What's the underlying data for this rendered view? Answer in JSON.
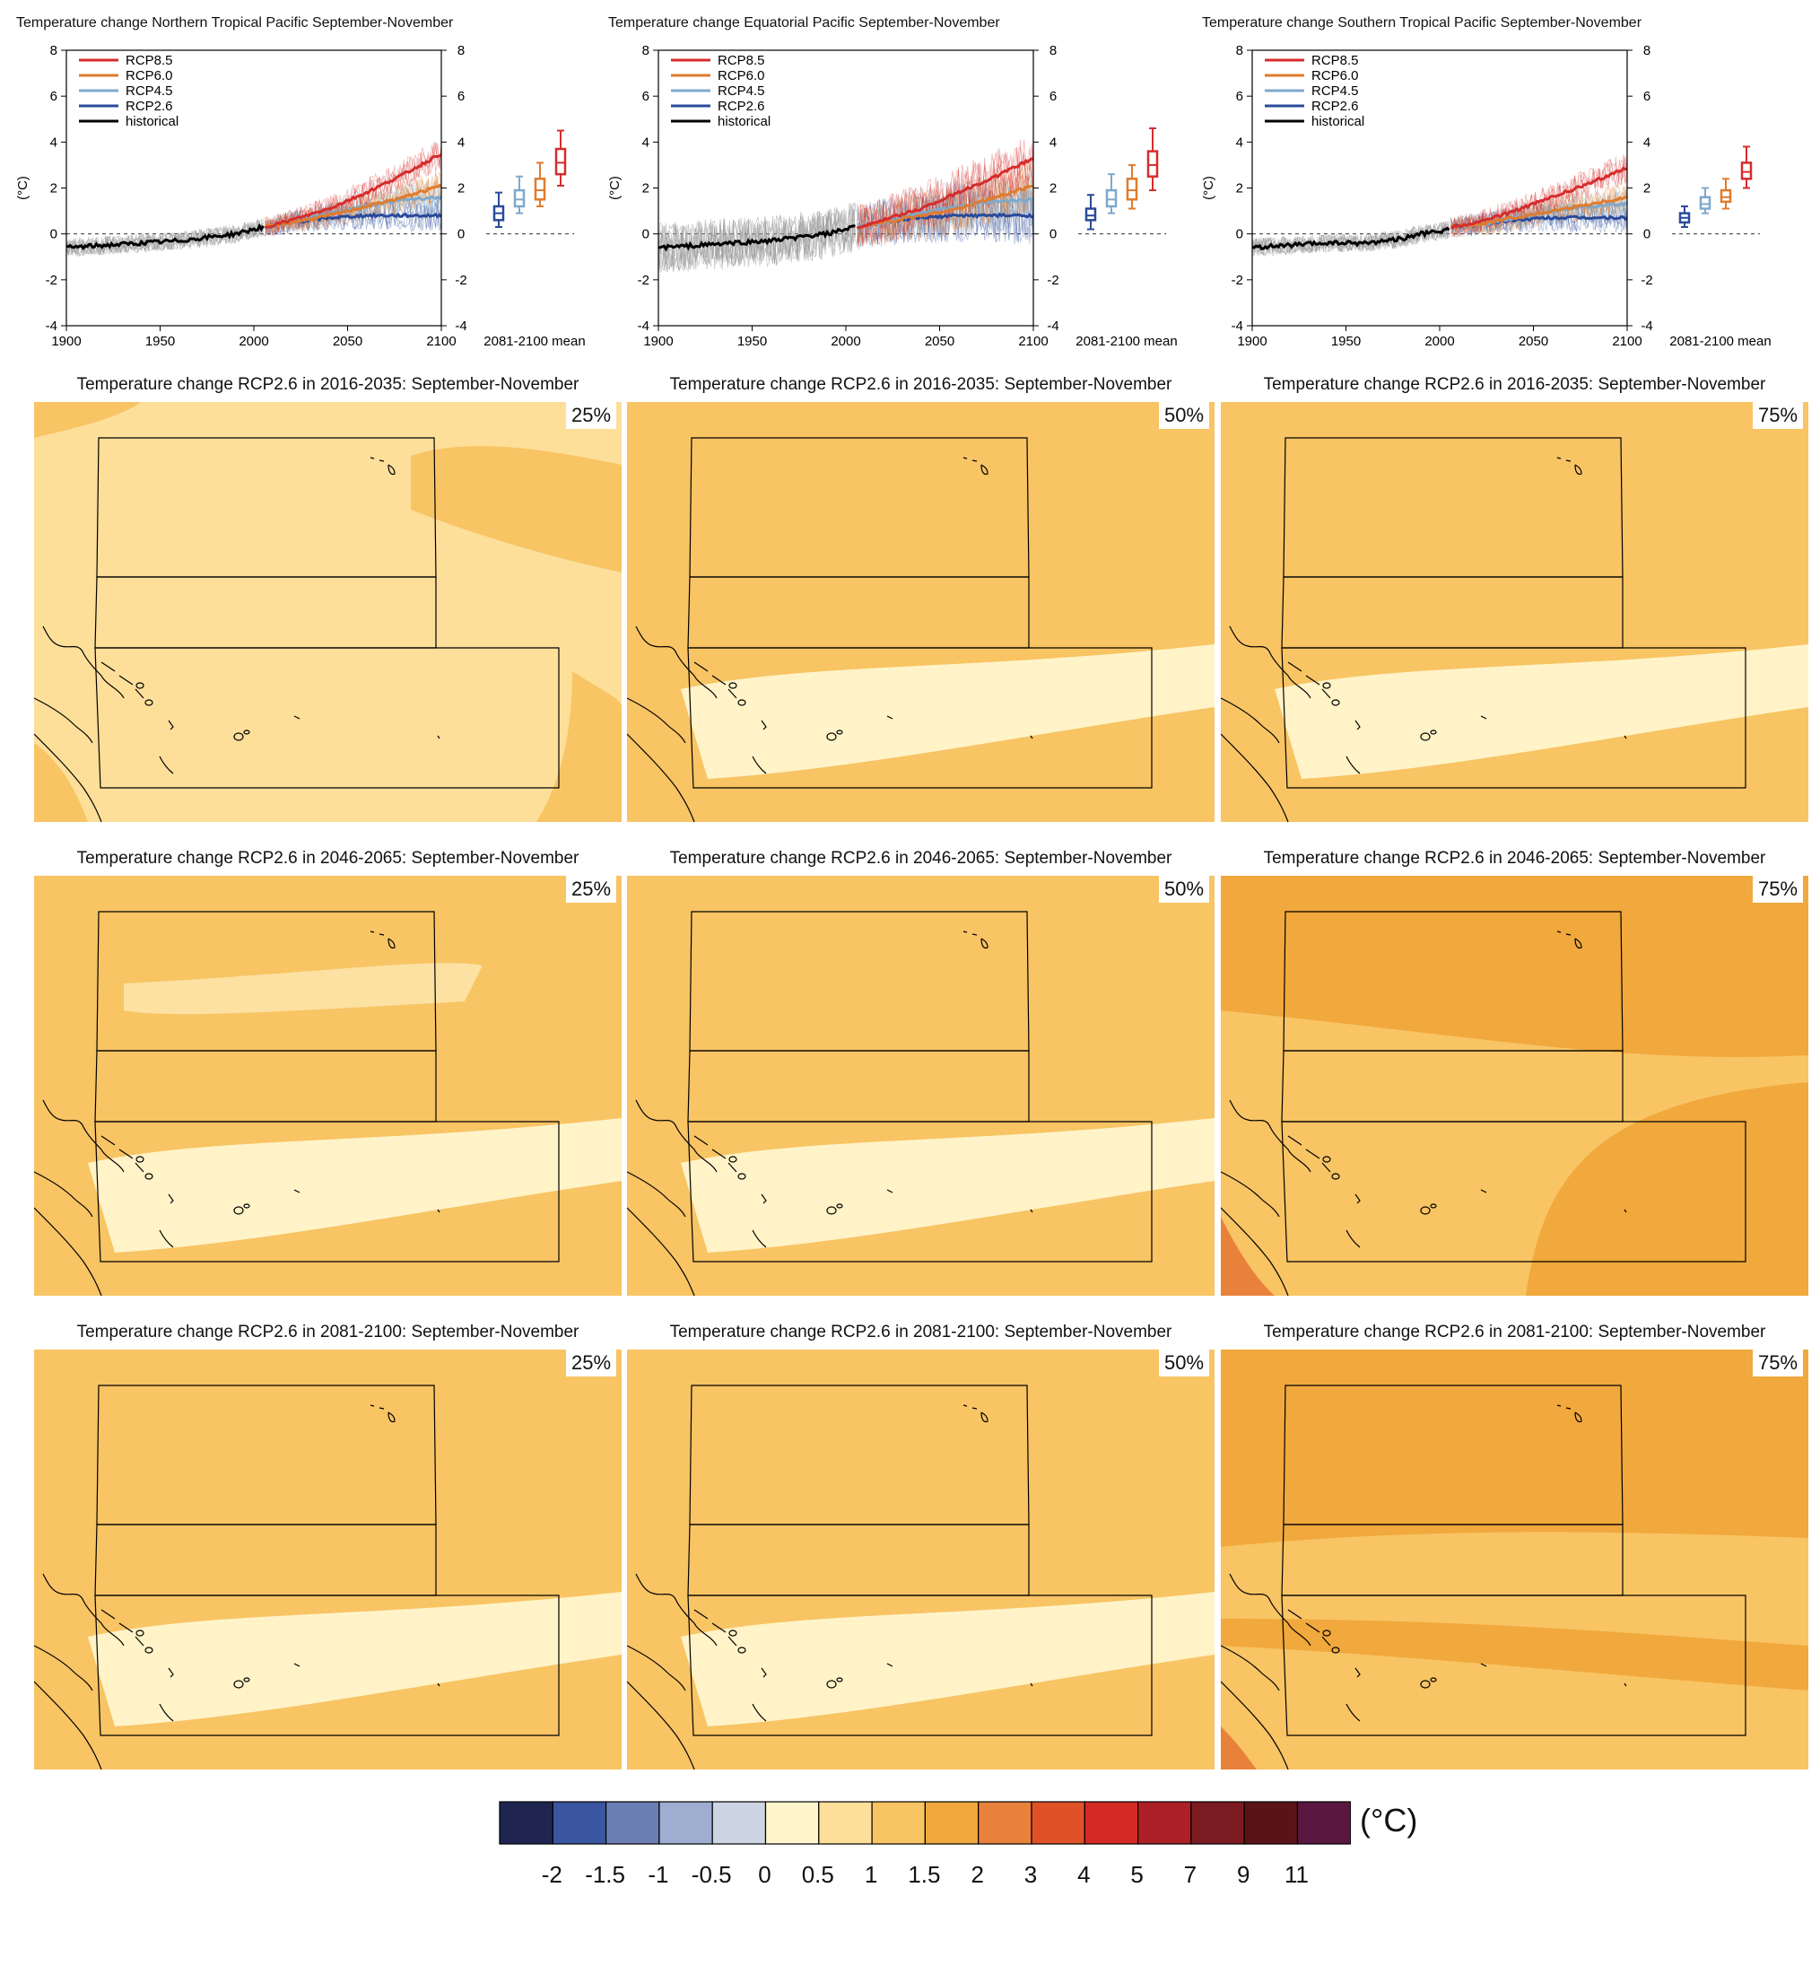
{
  "chart_data": [
    {
      "type": "line",
      "title": "Temperature change Northern Tropical Pacific September-November",
      "ylabel": "(°C)",
      "xlim": [
        1900,
        2100
      ],
      "ylim": [
        -4,
        8
      ],
      "xticks": [
        1900,
        1950,
        2000,
        2050,
        2100
      ],
      "yticks": [
        -4,
        -2,
        0,
        2,
        4,
        6,
        8
      ],
      "boxplot_label": "2081-2100 mean",
      "series": [
        {
          "name": "RCP8.5",
          "color": "#d62c2c",
          "x": [
            2006,
            2020,
            2040,
            2060,
            2080,
            2100
          ],
          "values": [
            0.3,
            0.6,
            1.1,
            1.8,
            2.6,
            3.5
          ]
        },
        {
          "name": "RCP6.0",
          "color": "#e07b2c",
          "x": [
            2006,
            2020,
            2040,
            2060,
            2080,
            2100
          ],
          "values": [
            0.3,
            0.5,
            0.8,
            1.2,
            1.6,
            2.1
          ]
        },
        {
          "name": "RCP4.5",
          "color": "#7fa8cc",
          "x": [
            2006,
            2020,
            2040,
            2060,
            2080,
            2100
          ],
          "values": [
            0.3,
            0.5,
            0.9,
            1.2,
            1.5,
            1.6
          ]
        },
        {
          "name": "RCP2.6",
          "color": "#2a4a9a",
          "x": [
            2006,
            2020,
            2040,
            2060,
            2080,
            2100
          ],
          "values": [
            0.3,
            0.5,
            0.7,
            0.8,
            0.8,
            0.8
          ]
        },
        {
          "name": "historical",
          "color": "#000000",
          "x": [
            1900,
            1920,
            1940,
            1960,
            1980,
            1990,
            2000,
            2005
          ],
          "values": [
            -0.6,
            -0.5,
            -0.4,
            -0.3,
            -0.1,
            0.0,
            0.2,
            0.3
          ]
        }
      ],
      "boxplots": [
        {
          "name": "RCP2.6",
          "color": "#2a4a9a",
          "min": 0.3,
          "q1": 0.6,
          "median": 0.9,
          "q3": 1.2,
          "max": 1.8
        },
        {
          "name": "RCP4.5",
          "color": "#7fa8cc",
          "min": 0.9,
          "q1": 1.2,
          "median": 1.5,
          "q3": 1.9,
          "max": 2.5
        },
        {
          "name": "RCP6.0",
          "color": "#e07b2c",
          "min": 1.2,
          "q1": 1.5,
          "median": 1.9,
          "q3": 2.4,
          "max": 3.1
        },
        {
          "name": "RCP8.5",
          "color": "#d62c2c",
          "min": 2.1,
          "q1": 2.6,
          "median": 3.1,
          "q3": 3.7,
          "max": 4.5
        }
      ]
    },
    {
      "type": "line",
      "title": "Temperature change Equatorial Pacific September-November",
      "ylabel": "(°C)",
      "xlim": [
        1900,
        2100
      ],
      "ylim": [
        -4,
        8
      ],
      "xticks": [
        1900,
        1950,
        2000,
        2050,
        2100
      ],
      "yticks": [
        -4,
        -2,
        0,
        2,
        4,
        6,
        8
      ],
      "boxplot_label": "2081-2100 mean",
      "series": [
        {
          "name": "RCP8.5",
          "color": "#d62c2c",
          "x": [
            2006,
            2020,
            2040,
            2060,
            2080,
            2100
          ],
          "values": [
            0.3,
            0.6,
            1.1,
            1.8,
            2.5,
            3.3
          ]
        },
        {
          "name": "RCP6.0",
          "color": "#e07b2c",
          "x": [
            2006,
            2020,
            2040,
            2060,
            2080,
            2100
          ],
          "values": [
            0.3,
            0.5,
            0.8,
            1.1,
            1.6,
            2.1
          ]
        },
        {
          "name": "RCP4.5",
          "color": "#7fa8cc",
          "x": [
            2006,
            2020,
            2040,
            2060,
            2080,
            2100
          ],
          "values": [
            0.3,
            0.5,
            0.9,
            1.2,
            1.4,
            1.5
          ]
        },
        {
          "name": "RCP2.6",
          "color": "#2a4a9a",
          "x": [
            2006,
            2020,
            2040,
            2060,
            2080,
            2100
          ],
          "values": [
            0.3,
            0.5,
            0.7,
            0.8,
            0.8,
            0.8
          ]
        },
        {
          "name": "historical",
          "color": "#000000",
          "x": [
            1900,
            1920,
            1940,
            1960,
            1980,
            1990,
            2000,
            2005
          ],
          "values": [
            -0.6,
            -0.5,
            -0.4,
            -0.3,
            -0.1,
            0.0,
            0.2,
            0.3
          ]
        }
      ],
      "boxplots": [
        {
          "name": "RCP2.6",
          "color": "#2a4a9a",
          "min": 0.2,
          "q1": 0.6,
          "median": 0.8,
          "q3": 1.1,
          "max": 1.7
        },
        {
          "name": "RCP4.5",
          "color": "#7fa8cc",
          "min": 0.9,
          "q1": 1.2,
          "median": 1.5,
          "q3": 1.9,
          "max": 2.6
        },
        {
          "name": "RCP6.0",
          "color": "#e07b2c",
          "min": 1.1,
          "q1": 1.5,
          "median": 1.9,
          "q3": 2.4,
          "max": 3.0
        },
        {
          "name": "RCP8.5",
          "color": "#d62c2c",
          "min": 1.9,
          "q1": 2.5,
          "median": 3.0,
          "q3": 3.6,
          "max": 4.6
        }
      ]
    },
    {
      "type": "line",
      "title": "Temperature change Southern Tropical Pacific September-November",
      "ylabel": "(°C)",
      "xlim": [
        1900,
        2100
      ],
      "ylim": [
        -4,
        8
      ],
      "xticks": [
        1900,
        1950,
        2000,
        2050,
        2100
      ],
      "yticks": [
        -4,
        -2,
        0,
        2,
        4,
        6,
        8
      ],
      "boxplot_label": "2081-2100 mean",
      "series": [
        {
          "name": "RCP8.5",
          "color": "#d62c2c",
          "x": [
            2006,
            2020,
            2040,
            2060,
            2080,
            2100
          ],
          "values": [
            0.3,
            0.5,
            1.0,
            1.6,
            2.2,
            2.9
          ]
        },
        {
          "name": "RCP6.0",
          "color": "#e07b2c",
          "x": [
            2006,
            2020,
            2040,
            2060,
            2080,
            2100
          ],
          "values": [
            0.3,
            0.4,
            0.7,
            1.0,
            1.3,
            1.6
          ]
        },
        {
          "name": "RCP4.5",
          "color": "#7fa8cc",
          "x": [
            2006,
            2020,
            2040,
            2060,
            2080,
            2100
          ],
          "values": [
            0.3,
            0.4,
            0.7,
            1.0,
            1.2,
            1.3
          ]
        },
        {
          "name": "RCP2.6",
          "color": "#2a4a9a",
          "x": [
            2006,
            2020,
            2040,
            2060,
            2080,
            2100
          ],
          "values": [
            0.3,
            0.4,
            0.6,
            0.7,
            0.7,
            0.7
          ]
        },
        {
          "name": "historical",
          "color": "#000000",
          "x": [
            1900,
            1920,
            1940,
            1960,
            1980,
            1990,
            2000,
            2005
          ],
          "values": [
            -0.6,
            -0.5,
            -0.4,
            -0.4,
            -0.2,
            0.0,
            0.1,
            0.2
          ]
        }
      ],
      "boxplots": [
        {
          "name": "RCP2.6",
          "color": "#2a4a9a",
          "min": 0.3,
          "q1": 0.5,
          "median": 0.7,
          "q3": 0.9,
          "max": 1.2
        },
        {
          "name": "RCP4.5",
          "color": "#7fa8cc",
          "min": 0.9,
          "q1": 1.1,
          "median": 1.3,
          "q3": 1.6,
          "max": 2.0
        },
        {
          "name": "RCP6.0",
          "color": "#e07b2c",
          "min": 1.1,
          "q1": 1.4,
          "median": 1.6,
          "q3": 1.9,
          "max": 2.4
        },
        {
          "name": "RCP8.5",
          "color": "#d62c2c",
          "min": 2.0,
          "q1": 2.4,
          "median": 2.7,
          "q3": 3.1,
          "max": 3.8
        }
      ]
    },
    {
      "type": "heatmap",
      "maps": [
        {
          "title": "Temperature change RCP2.6 in 2016-2035: September-November",
          "percentile": "25%",
          "base": 0.5,
          "dominant": 0.5
        },
        {
          "title": "Temperature change RCP2.6 in 2016-2035: September-November",
          "percentile": "50%",
          "base": 1,
          "dominant": 1
        },
        {
          "title": "Temperature change RCP2.6 in 2016-2035: September-November",
          "percentile": "75%",
          "base": 1,
          "dominant": 1
        },
        {
          "title": "Temperature change RCP2.6 in 2046-2065: September-November",
          "percentile": "25%",
          "base": 1,
          "dominant": 1
        },
        {
          "title": "Temperature change RCP2.6 in 2046-2065: September-November",
          "percentile": "50%",
          "base": 1,
          "dominant": 1
        },
        {
          "title": "Temperature change RCP2.6 in 2046-2065: September-November",
          "percentile": "75%",
          "base": 1,
          "dominant": 1.5
        },
        {
          "title": "Temperature change RCP2.6 in 2081-2100: September-November",
          "percentile": "25%",
          "base": 1,
          "dominant": 1
        },
        {
          "title": "Temperature change RCP2.6 in 2081-2100: September-November",
          "percentile": "50%",
          "base": 1,
          "dominant": 1
        },
        {
          "title": "Temperature change RCP2.6 in 2081-2100: September-November",
          "percentile": "75%",
          "base": 1.5,
          "dominant": 1.5
        }
      ],
      "colorbar": {
        "unit": "(°C)",
        "colors": [
          "#1f2550",
          "#3a56a0",
          "#6b7fb5",
          "#9eadd0",
          "#ccd3e3",
          "#fff5cc",
          "#fddf9a",
          "#f8c464",
          "#f1a83c",
          "#e8823a",
          "#e05128",
          "#d42a24",
          "#ad2028",
          "#7c1a22",
          "#5a1418",
          "#5a1840"
        ],
        "ticks": [
          "-2",
          "-1.5",
          "-1",
          "-0.5",
          "0",
          "0.5",
          "1",
          "1.5",
          "2",
          "3",
          "4",
          "5",
          "7",
          "9",
          "11"
        ]
      }
    }
  ]
}
